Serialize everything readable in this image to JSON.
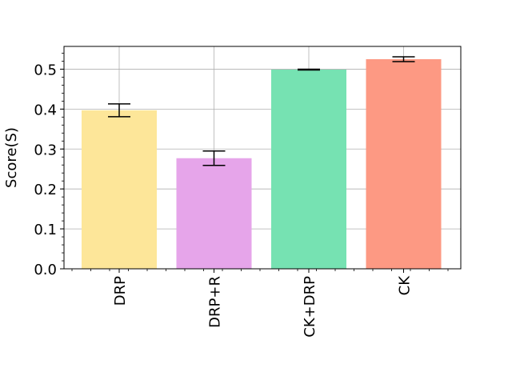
{
  "chart_data": {
    "type": "bar",
    "title": "",
    "xlabel": "",
    "ylabel": "Score(S)",
    "categories": [
      "DRP",
      "DRP+R",
      "CK+DRP",
      "CK"
    ],
    "values": [
      0.397,
      0.277,
      0.499,
      0.525
    ],
    "errors": [
      0.016,
      0.018,
      0.001,
      0.006
    ],
    "colors": [
      "#fde699",
      "#e6a5ea",
      "#76e2b2",
      "#fd9983"
    ],
    "ylim": [
      0,
      0.557
    ],
    "yticks": [
      0.0,
      0.1,
      0.2,
      0.3,
      0.4,
      0.5
    ],
    "ytick_labels": [
      "0.0",
      "0.1",
      "0.2",
      "0.3",
      "0.4",
      "0.5"
    ],
    "grid": true,
    "legend": "none"
  }
}
